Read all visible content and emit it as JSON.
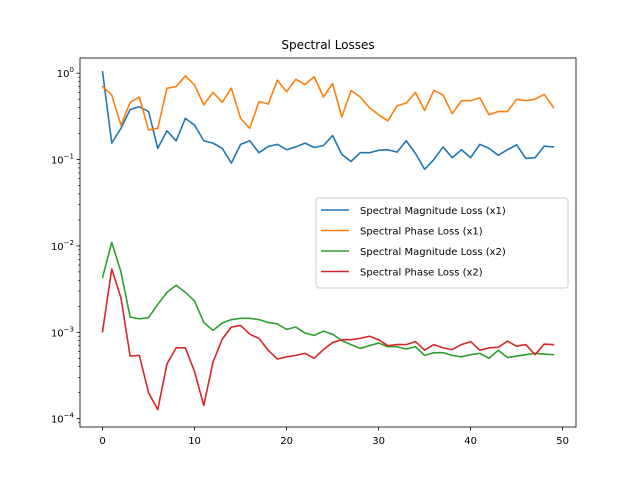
{
  "chart_data": {
    "type": "line",
    "title": "Spectral Losses",
    "xlabel": "",
    "ylabel": "",
    "yscale": "log",
    "xlim": [
      -2.45,
      51.45
    ],
    "ylim": [
      8e-05,
      1.5
    ],
    "x_ticks": [
      0,
      10,
      20,
      30,
      40,
      50
    ],
    "y_ticks": [
      {
        "value": 0.0001,
        "base": "10",
        "exp": "−4"
      },
      {
        "value": 0.001,
        "base": "10",
        "exp": "−3"
      },
      {
        "value": 0.01,
        "base": "10",
        "exp": "−2"
      },
      {
        "value": 0.1,
        "base": "10",
        "exp": "−1"
      },
      {
        "value": 1,
        "base": "10",
        "exp": "0"
      }
    ],
    "grid": false,
    "legend_position": "center-right",
    "x": [
      0,
      1,
      2,
      3,
      4,
      5,
      6,
      7,
      8,
      9,
      10,
      11,
      12,
      13,
      14,
      15,
      16,
      17,
      18,
      19,
      20,
      21,
      22,
      23,
      24,
      25,
      26,
      27,
      28,
      29,
      30,
      31,
      32,
      33,
      34,
      35,
      36,
      37,
      38,
      39,
      40,
      41,
      42,
      43,
      44,
      45,
      46,
      47,
      48,
      49
    ],
    "series": [
      {
        "name": "Spectral Magnitude Loss (x1)",
        "color": "#1f77b4",
        "values": [
          1.04,
          0.155,
          0.23,
          0.38,
          0.41,
          0.36,
          0.135,
          0.215,
          0.165,
          0.3,
          0.25,
          0.165,
          0.155,
          0.135,
          0.091,
          0.15,
          0.165,
          0.12,
          0.142,
          0.15,
          0.13,
          0.14,
          0.155,
          0.138,
          0.145,
          0.19,
          0.115,
          0.095,
          0.12,
          0.12,
          0.128,
          0.13,
          0.122,
          0.165,
          0.118,
          0.077,
          0.1,
          0.14,
          0.105,
          0.13,
          0.105,
          0.15,
          0.135,
          0.112,
          0.13,
          0.148,
          0.103,
          0.105,
          0.143,
          0.14
        ]
      },
      {
        "name": "Spectral Phase Loss (x1)",
        "color": "#ff7f0e",
        "values": [
          0.7,
          0.56,
          0.25,
          0.46,
          0.53,
          0.22,
          0.23,
          0.67,
          0.7,
          0.93,
          0.73,
          0.43,
          0.6,
          0.46,
          0.67,
          0.3,
          0.23,
          0.47,
          0.44,
          0.83,
          0.61,
          0.85,
          0.74,
          0.91,
          0.53,
          0.76,
          0.31,
          0.63,
          0.53,
          0.4,
          0.33,
          0.28,
          0.42,
          0.45,
          0.6,
          0.37,
          0.63,
          0.56,
          0.34,
          0.48,
          0.48,
          0.52,
          0.33,
          0.36,
          0.36,
          0.5,
          0.48,
          0.5,
          0.57,
          0.4
        ]
      },
      {
        "name": "Spectral Magnitude Loss (x2)",
        "color": "#2ca02c",
        "values": [
          0.0043,
          0.011,
          0.005,
          0.0015,
          0.00143,
          0.00148,
          0.0021,
          0.0029,
          0.0035,
          0.0029,
          0.0023,
          0.0013,
          0.00105,
          0.00128,
          0.0014,
          0.00145,
          0.00145,
          0.0014,
          0.0013,
          0.00125,
          0.00108,
          0.00115,
          0.00098,
          0.00092,
          0.00103,
          0.00095,
          0.0008,
          0.00072,
          0.00065,
          0.0007,
          0.00075,
          0.00068,
          0.00068,
          0.00064,
          0.00068,
          0.00054,
          0.00058,
          0.00058,
          0.00054,
          0.00052,
          0.00055,
          0.00057,
          0.0005,
          0.00062,
          0.00051,
          0.00053,
          0.00055,
          0.00057,
          0.00056,
          0.00055
        ]
      },
      {
        "name": "Spectral Phase Loss (x2)",
        "color": "#d62728",
        "values": [
          0.00102,
          0.0054,
          0.0025,
          0.00053,
          0.00054,
          0.0002,
          0.000127,
          0.00043,
          0.00066,
          0.00066,
          0.00035,
          0.000142,
          0.00045,
          0.00083,
          0.00115,
          0.0012,
          0.00095,
          0.00085,
          0.00062,
          0.00049,
          0.00052,
          0.00054,
          0.00057,
          0.0005,
          0.00063,
          0.00076,
          0.00082,
          0.00082,
          0.00085,
          0.0009,
          0.00082,
          0.0007,
          0.00072,
          0.00072,
          0.00078,
          0.00062,
          0.00072,
          0.00066,
          0.00063,
          0.00072,
          0.00078,
          0.00062,
          0.00066,
          0.00067,
          0.00079,
          0.00069,
          0.00072,
          0.00055,
          0.00073,
          0.00072
        ]
      }
    ]
  }
}
